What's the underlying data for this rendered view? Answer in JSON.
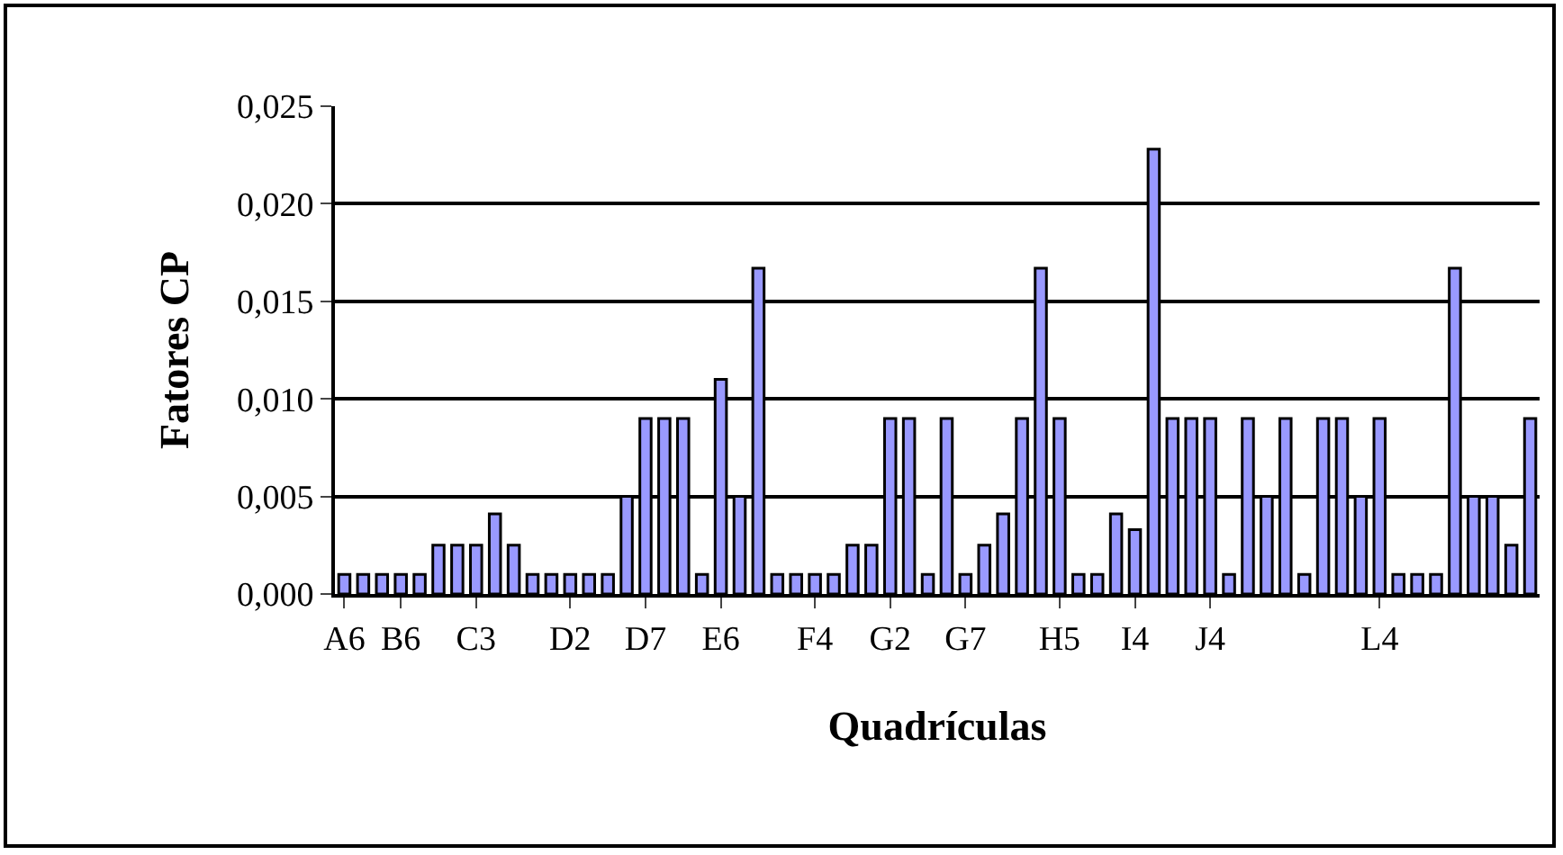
{
  "chart_data": {
    "type": "bar",
    "xlabel": "Quadrículas",
    "ylabel": "Fatores CP",
    "categories": [
      "A6",
      null,
      null,
      "B6",
      null,
      null,
      null,
      "C3",
      null,
      null,
      null,
      null,
      "D2",
      null,
      null,
      null,
      "D7",
      null,
      null,
      null,
      "E6",
      null,
      null,
      null,
      null,
      "F4",
      null,
      null,
      null,
      "G2",
      null,
      null,
      null,
      "G7",
      null,
      null,
      null,
      null,
      "H5",
      null,
      null,
      null,
      "I4",
      null,
      null,
      null,
      "J4",
      null,
      null,
      null,
      null,
      null,
      null,
      null,
      null,
      "L4",
      null,
      null,
      null,
      null,
      null,
      null,
      null,
      null
    ],
    "values": [
      0.001,
      0.001,
      0.001,
      0.001,
      0.001,
      0.0025,
      0.0025,
      0.0025,
      0.0041,
      0.0025,
      0.001,
      0.001,
      0.001,
      0.001,
      0.001,
      0.005,
      0.009,
      0.009,
      0.009,
      0.001,
      0.011,
      0.005,
      0.0167,
      0.001,
      0.001,
      0.001,
      0.001,
      0.0025,
      0.0025,
      0.009,
      0.009,
      0.001,
      0.009,
      0.001,
      0.0025,
      0.0041,
      0.009,
      0.0167,
      0.009,
      0.001,
      0.001,
      0.0041,
      0.0033,
      0.0228,
      0.009,
      0.009,
      0.009,
      0.001,
      0.009,
      0.005,
      0.009,
      0.001,
      0.009,
      0.009,
      0.005,
      0.009,
      0.001,
      0.001,
      0.001,
      0.0167,
      0.005,
      0.005,
      0.0025,
      0.009
    ],
    "color": "#9999ff",
    "ylim": [
      0,
      0.025
    ],
    "yticks": [
      {
        "value": 0,
        "label": "0,000"
      },
      {
        "value": 0.005,
        "label": "0,005"
      },
      {
        "value": 0.01,
        "label": "0,010"
      },
      {
        "value": 0.015,
        "label": "0,015"
      },
      {
        "value": 0.02,
        "label": "0,020"
      },
      {
        "value": 0.025,
        "label": "0,025"
      }
    ],
    "grid": "y"
  }
}
